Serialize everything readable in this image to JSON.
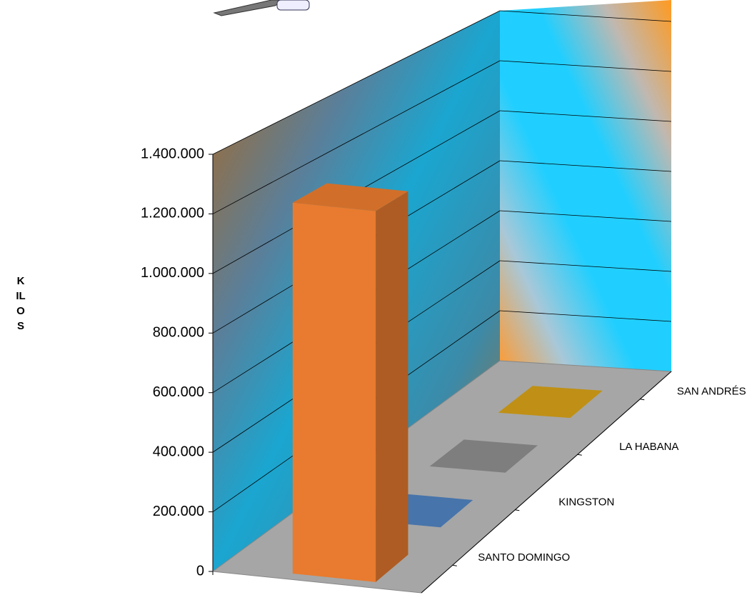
{
  "chart_data": {
    "type": "bar3d",
    "y_label": "KILOS",
    "categories": [
      "SANTO DOMINGO",
      "KINGSTON",
      "LA HABANA",
      "SAN ANDRÉS"
    ],
    "values": [
      1250000,
      0,
      0,
      0
    ],
    "colors": [
      "#e87b2f",
      "#4f81bd",
      "#8c8c8c",
      "#d4a017"
    ],
    "ylim": [
      0,
      1400000
    ],
    "yticks": [
      0,
      {
        "value": 200000,
        "label": "200.000"
      },
      {
        "value": 400000,
        "label": "400.000"
      },
      {
        "value": 600000,
        "label": "600.000"
      },
      {
        "value": 800000,
        "label": "800.000"
      },
      {
        "value": 1000000,
        "label": "1.000.000"
      },
      {
        "value": 1200000,
        "label": "1.200.000"
      },
      {
        "value": 1400000,
        "label": "1.400.000"
      }
    ],
    "grid": true
  }
}
